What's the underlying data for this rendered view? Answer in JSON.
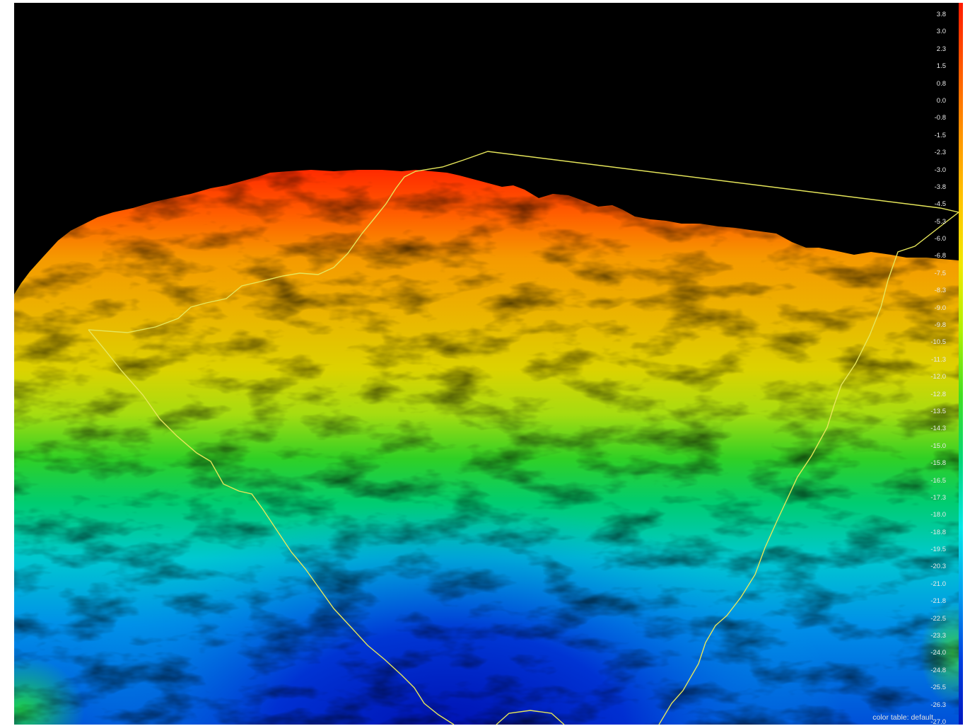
{
  "legend": {
    "ticks": [
      "3.8",
      "3.0",
      "2.3",
      "1.5",
      "0.8",
      "0.0",
      "-0.8",
      "-1.5",
      "-2.3",
      "-3.0",
      "-3.8",
      "-4.5",
      "-5.3",
      "-6.0",
      "-6.8",
      "-7.5",
      "-8.3",
      "-9.0",
      "-9.8",
      "-10.5",
      "-11.3",
      "-12.0",
      "-12.8",
      "-13.5",
      "-14.3",
      "-15.0",
      "-15.8",
      "-16.5",
      "-17.3",
      "-18.0",
      "-18.8",
      "-19.5",
      "-20.3",
      "-21.0",
      "-21.8",
      "-22.5",
      "-23.3",
      "-24.0",
      "-24.8",
      "-25.5",
      "-26.3",
      "-27.0"
    ],
    "gradient_colors": [
      "#ff1a00",
      "#ff5a00",
      "#ff9400",
      "#ffc400",
      "#f0e800",
      "#b0f000",
      "#40e020",
      "#00d878",
      "#00e8e8",
      "#00a0f0",
      "#0040e0",
      "#0018c0"
    ]
  },
  "color_table_label": "color table: default",
  "colors": {
    "background": "#000000",
    "boundary_line": "#e6e65a"
  }
}
